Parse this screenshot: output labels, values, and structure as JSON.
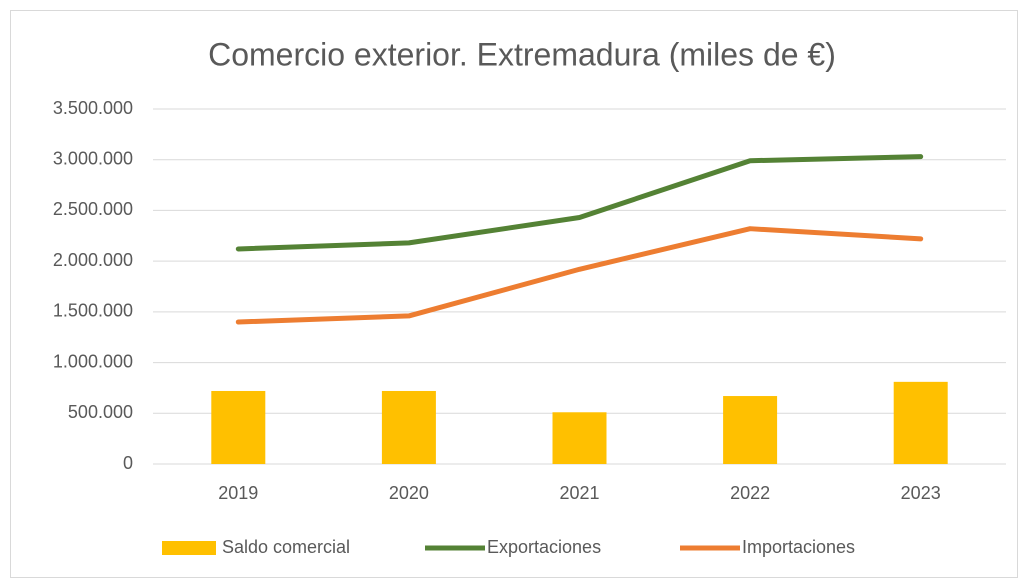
{
  "chart_data": {
    "type": "combo",
    "title": "Comercio exterior. Extremadura (miles de €)",
    "categories": [
      "2019",
      "2020",
      "2021",
      "2022",
      "2023"
    ],
    "series": [
      {
        "name": "Saldo comercial",
        "type": "bar",
        "color": "#ffc000",
        "values": [
          720000,
          720000,
          510000,
          670000,
          810000
        ]
      },
      {
        "name": "Exportaciones",
        "type": "line",
        "color": "#548235",
        "values": [
          2120000,
          2180000,
          2430000,
          2990000,
          3030000
        ]
      },
      {
        "name": "Importaciones",
        "type": "line",
        "color": "#ed7d31",
        "values": [
          1400000,
          1460000,
          1920000,
          2320000,
          2220000
        ]
      }
    ],
    "ylim": [
      0,
      3500000
    ],
    "yticks": [
      0,
      {
        "value": 500000,
        "label": "500.000"
      },
      {
        "value": 1000000,
        "label": "1.000.000"
      },
      {
        "value": 1500000,
        "label": "1.500.000"
      },
      {
        "value": 2000000,
        "label": "2.000.000"
      },
      {
        "value": 2500000,
        "label": "2.500.000"
      },
      {
        "value": 3000000,
        "label": "3.000.000"
      },
      {
        "value": 3500000,
        "label": "3.500.000"
      }
    ],
    "grid": true,
    "legend": "bottom"
  }
}
